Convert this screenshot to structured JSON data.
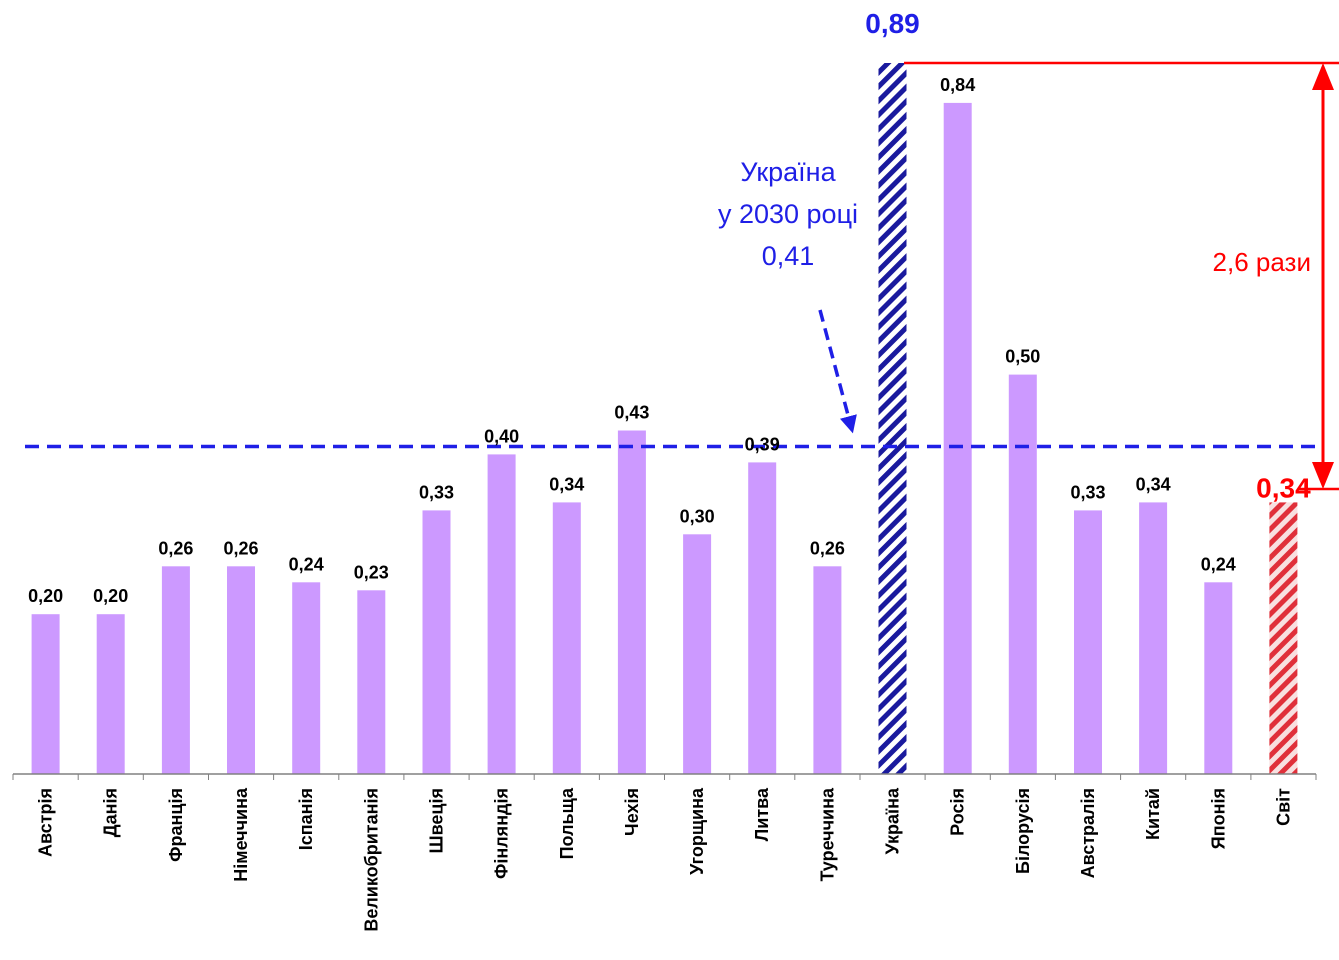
{
  "chart_data": {
    "type": "bar",
    "title": "",
    "xlabel": "",
    "ylabel": "",
    "ylim": [
      0,
      0.89
    ],
    "grid": false,
    "legend": "none",
    "categories": [
      "Австрія",
      "Данія",
      "Франція",
      "Німеччина",
      "Іспанія",
      "Великобританія",
      "Швеція",
      "Фінляндія",
      "Польща",
      "Чехія",
      "Угорщина",
      "Литва",
      "Туреччина",
      "Україна",
      "Росія",
      "Білорусія",
      "Австралія",
      "Китай",
      "Японія",
      "Світ"
    ],
    "values": [
      0.2,
      0.2,
      0.26,
      0.26,
      0.24,
      0.23,
      0.33,
      0.4,
      0.34,
      0.43,
      0.3,
      0.39,
      0.26,
      0.89,
      0.84,
      0.5,
      0.33,
      0.34,
      0.24,
      0.34
    ],
    "value_labels": [
      "0,20",
      "0,20",
      "0,26",
      "0,26",
      "0,24",
      "0,23",
      "0,33",
      "0,40",
      "0,34",
      "0,43",
      "0,30",
      "0,39",
      "0,26",
      "0,89",
      "0,84",
      "0,50",
      "0,33",
      "0,34",
      "0,24",
      "0,34"
    ],
    "highlight": {
      "ukraine_index": 13,
      "world_index": 19
    },
    "reference_line": {
      "value": 0.41,
      "style": "dashed"
    },
    "annotations": {
      "ukraine_2030_lines": [
        "Україна",
        "у 2030 році",
        "0,41"
      ],
      "ratio_label": "2,6 рази"
    },
    "colors": {
      "bar": "#cc99ff",
      "ukraine_stripe": "#1a1a9e",
      "world_stripe": "#e0303a",
      "annotation_blue": "#1f1fe6",
      "annotation_red": "#ff0000",
      "axis": "#808080"
    }
  }
}
